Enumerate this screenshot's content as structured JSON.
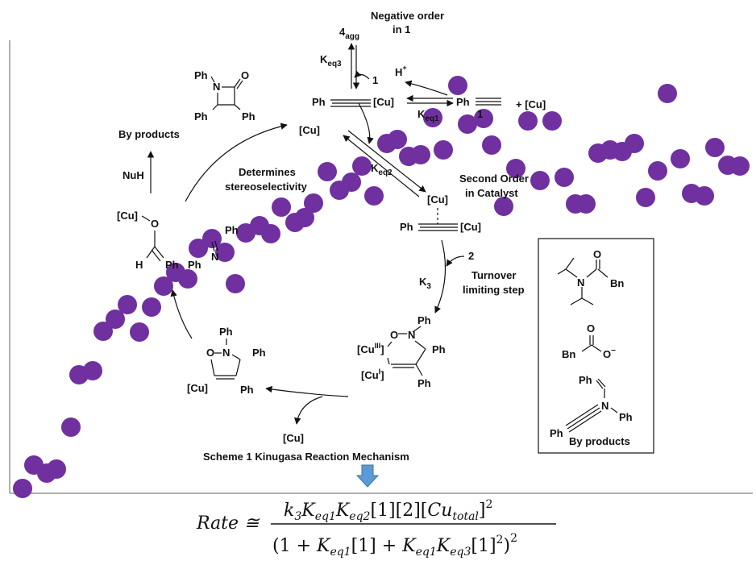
{
  "figure": {
    "colors": {
      "dot": "#7030a0",
      "axis": "#b0b0b0",
      "ink": "#111111",
      "arrow_down": "#5b9bd5"
    },
    "scatter_points": [
      [
        28,
        606
      ],
      [
        42,
        577
      ],
      [
        58,
        587
      ],
      [
        70,
        582
      ],
      [
        88,
        530
      ],
      [
        98,
        465
      ],
      [
        115,
        460
      ],
      [
        128,
        411
      ],
      [
        143,
        396
      ],
      [
        158,
        378
      ],
      [
        173,
        412
      ],
      [
        188,
        381
      ],
      [
        203,
        355
      ],
      [
        218,
        338
      ],
      [
        233,
        346
      ],
      [
        246,
        308
      ],
      [
        263,
        296
      ],
      [
        279,
        313
      ],
      [
        292,
        352
      ],
      [
        305,
        289
      ],
      [
        322,
        280
      ],
      [
        336,
        290
      ],
      [
        349,
        257
      ],
      [
        366,
        276
      ],
      [
        378,
        270
      ],
      [
        389,
        252
      ],
      [
        406,
        213
      ],
      [
        421,
        236
      ],
      [
        436,
        226
      ],
      [
        449,
        206
      ],
      [
        464,
        243
      ],
      [
        480,
        178
      ],
      [
        493,
        173
      ],
      [
        507,
        194
      ],
      [
        522,
        192
      ],
      [
        537,
        146
      ],
      [
        550,
        186
      ],
      [
        568,
        106
      ],
      [
        580,
        154
      ],
      [
        600,
        147
      ],
      [
        610,
        180
      ],
      [
        625,
        256
      ],
      [
        640,
        209
      ],
      [
        655,
        150
      ],
      [
        670,
        224
      ],
      [
        685,
        150
      ],
      [
        700,
        220
      ],
      [
        714,
        253
      ],
      [
        727,
        253
      ],
      [
        742,
        190
      ],
      [
        757,
        186
      ],
      [
        772,
        188
      ],
      [
        787,
        178
      ],
      [
        801,
        245
      ],
      [
        816,
        212
      ],
      [
        828,
        116
      ],
      [
        844,
        197
      ],
      [
        858,
        240
      ],
      [
        874,
        243
      ],
      [
        887,
        183
      ],
      [
        903,
        205
      ],
      [
        918,
        206
      ]
    ],
    "mechanism": {
      "negative_order": [
        "Negative order",
        "in 1"
      ],
      "agg": {
        "main": "4",
        "sub": "agg"
      },
      "keq3": {
        "main": "K",
        "sub": "eq3"
      },
      "one_a": "1",
      "hplus": {
        "main": "H",
        "sup": "+"
      },
      "ph_cu_left": "Ph",
      "ph_cu_right": "[Cu]",
      "keq1": {
        "main": "K",
        "sub": "eq1"
      },
      "ph_alkyne": "Ph",
      "plus_cu": "+ [Cu]",
      "one_b": "1",
      "cu_free": "[Cu]",
      "keq2": {
        "main": "K",
        "sub": "eq2"
      },
      "second_order": [
        "Second Order",
        "in Catalyst"
      ],
      "pi_cu": "[Cu]",
      "ph_pi_left": "Ph",
      "ph_pi_right": "[Cu]",
      "two": "2",
      "k3": {
        "main": "K",
        "sub": "3"
      },
      "turnover": [
        "Turnover",
        "limiting step"
      ],
      "determines": [
        "Determines",
        "stereoselectivity"
      ],
      "beta_lactam": {
        "ph_n": "Ph",
        "n": "N",
        "o": "O",
        "ph_a": "Ph",
        "ph_b": "Ph"
      },
      "by_products_left": "By products",
      "nuh": "NuH",
      "enolate": {
        "cu": "[Cu]",
        "o": "O",
        "h": "H",
        "ph": "Ph"
      },
      "nitrone": {
        "ph_top": "Ph",
        "n": "N",
        "ph_n": "Ph"
      },
      "isox": {
        "ph_n": "Ph",
        "o": "O",
        "n": "N",
        "ph_c3": "Ph",
        "cu": "[Cu]",
        "ph_c4": "Ph"
      },
      "metallacycle": {
        "ph_n": "Ph",
        "o": "O",
        "n": "N",
        "cu3": {
          "main": "[Cu",
          "sup": "III",
          "close": "]"
        },
        "cu1": {
          "main": "[Cu",
          "sup": "I",
          "close": "]"
        },
        "ph_c": "Ph",
        "ph_c2": "Ph"
      },
      "cu_bottom": "[Cu]",
      "scheme_caption": "Scheme 1 Kinugasa Reaction Mechanism"
    },
    "byproducts_box": {
      "amide": {
        "o": "O",
        "n": "N",
        "bn": "Bn"
      },
      "carboxylate": {
        "o": "O",
        "bn": "Bn",
        "om": "O",
        "minus": "−"
      },
      "ynamine": {
        "ph_top": "Ph",
        "n": "N",
        "ph_n": "Ph",
        "ph_alk": "Ph"
      },
      "label": "By products"
    },
    "rate_equation": {
      "lhs": "Rate ≅",
      "numerator": {
        "k3": {
          "main": "k",
          "sub": "3"
        },
        "keq1": {
          "main": "K",
          "sub": "eq1"
        },
        "keq2": {
          "main": "K",
          "sub": "eq2"
        },
        "tail": "[1][2][",
        "cu": {
          "main": "Cu",
          "sub": "total"
        },
        "close": "]",
        "sq": "2"
      },
      "denominator": {
        "open": "(1 + ",
        "keq1a": {
          "main": "K",
          "sub": "eq1"
        },
        "mid": "[1] + ",
        "keq1b": {
          "main": "K",
          "sub": "eq1"
        },
        "keq3": {
          "main": "K",
          "sub": "eq3"
        },
        "tail": "[1]",
        "sq_inner": "2",
        "close": ")",
        "sq": "2"
      }
    }
  }
}
